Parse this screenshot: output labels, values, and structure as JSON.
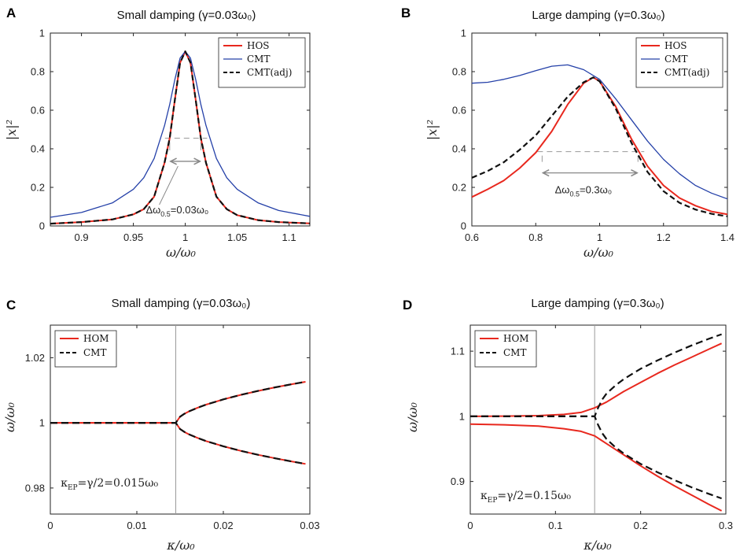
{
  "chart_data": [
    {
      "id": "A",
      "type": "line",
      "letter": "A",
      "title": "Small damping (γ=0.03ω₀)",
      "xlabel": "ω/ω₀",
      "ylabel": "|x|²",
      "xlim": [
        0.87,
        1.12
      ],
      "ylim": [
        0,
        1
      ],
      "xticks": [
        0.9,
        0.95,
        1,
        1.05,
        1.1
      ],
      "xtick_labels": [
        "0.9",
        "0.95",
        "1",
        "1.05",
        "1.1"
      ],
      "yticks": [
        0,
        0.2,
        0.4,
        0.6,
        0.8,
        1
      ],
      "ytick_labels": [
        "0",
        "0.2",
        "0.4",
        "0.6",
        "0.8",
        "1"
      ],
      "legend_position": "top-right",
      "series": [
        {
          "name": "HOS",
          "color": "#e8281e",
          "style": "solid",
          "x": [
            0.87,
            0.9,
            0.93,
            0.95,
            0.96,
            0.97,
            0.98,
            0.985,
            0.99,
            0.995,
            1.0,
            1.005,
            1.01,
            1.015,
            1.02,
            1.03,
            1.04,
            1.05,
            1.07,
            1.09,
            1.12
          ],
          "y": [
            0.012,
            0.02,
            0.034,
            0.06,
            0.087,
            0.152,
            0.327,
            0.455,
            0.655,
            0.846,
            0.905,
            0.846,
            0.655,
            0.455,
            0.327,
            0.152,
            0.087,
            0.056,
            0.03,
            0.02,
            0.013
          ]
        },
        {
          "name": "CMT",
          "color": "#2440a8",
          "style": "solid",
          "x": [
            0.87,
            0.9,
            0.93,
            0.95,
            0.96,
            0.97,
            0.98,
            0.985,
            0.99,
            0.995,
            1.0,
            1.005,
            1.01,
            1.015,
            1.02,
            1.03,
            1.04,
            1.05,
            1.07,
            1.09,
            1.12
          ],
          "y": [
            0.045,
            0.07,
            0.12,
            0.19,
            0.25,
            0.35,
            0.52,
            0.63,
            0.76,
            0.87,
            0.905,
            0.87,
            0.76,
            0.63,
            0.52,
            0.35,
            0.25,
            0.19,
            0.12,
            0.08,
            0.05
          ]
        },
        {
          "name": "CMT(adj)",
          "color": "#111111",
          "style": "dashed",
          "x": [
            0.87,
            0.9,
            0.93,
            0.95,
            0.96,
            0.97,
            0.98,
            0.985,
            0.99,
            0.995,
            1.0,
            1.005,
            1.01,
            1.015,
            1.02,
            1.03,
            1.04,
            1.05,
            1.07,
            1.09,
            1.12
          ],
          "y": [
            0.012,
            0.02,
            0.034,
            0.06,
            0.087,
            0.152,
            0.327,
            0.455,
            0.655,
            0.846,
            0.905,
            0.846,
            0.655,
            0.455,
            0.327,
            0.152,
            0.087,
            0.056,
            0.03,
            0.02,
            0.013
          ]
        }
      ],
      "halfmax": {
        "y": 0.455,
        "x_from": 0.985,
        "x_to": 1.015,
        "arrow_y": 0.335
      },
      "annotation": {
        "text": "Δω₀.₅=0.03ω₀",
        "main": "Δω",
        "sub": "0.5",
        "rest": "=0.03ω₀",
        "x": 0.962,
        "y": 0.065
      }
    },
    {
      "id": "B",
      "type": "line",
      "letter": "B",
      "title": "Large damping (γ=0.3ω₀)",
      "xlabel": "ω/ω₀",
      "ylabel": "|x|²",
      "xlim": [
        0.6,
        1.4
      ],
      "ylim": [
        0,
        1
      ],
      "xticks": [
        0.6,
        0.8,
        1,
        1.2,
        1.4
      ],
      "xtick_labels": [
        "0.6",
        "0.8",
        "1",
        "1.2",
        "1.4"
      ],
      "yticks": [
        0,
        0.2,
        0.4,
        0.6,
        0.8,
        1
      ],
      "ytick_labels": [
        "0",
        "0.2",
        "0.4",
        "0.6",
        "0.8",
        "1"
      ],
      "legend_position": "top-right",
      "series": [
        {
          "name": "HOS",
          "color": "#e8281e",
          "style": "solid",
          "x": [
            0.6,
            0.65,
            0.7,
            0.75,
            0.8,
            0.85,
            0.9,
            0.95,
            0.98,
            1.0,
            1.05,
            1.1,
            1.15,
            1.2,
            1.25,
            1.3,
            1.35,
            1.4
          ],
          "y": [
            0.15,
            0.19,
            0.235,
            0.3,
            0.38,
            0.49,
            0.63,
            0.74,
            0.77,
            0.75,
            0.62,
            0.45,
            0.31,
            0.21,
            0.145,
            0.105,
            0.075,
            0.06
          ]
        },
        {
          "name": "CMT",
          "color": "#2440a8",
          "style": "solid",
          "x": [
            0.6,
            0.65,
            0.7,
            0.75,
            0.8,
            0.85,
            0.9,
            0.95,
            1.0,
            1.05,
            1.1,
            1.15,
            1.2,
            1.25,
            1.3,
            1.35,
            1.4
          ],
          "y": [
            0.74,
            0.745,
            0.76,
            0.78,
            0.805,
            0.828,
            0.835,
            0.81,
            0.76,
            0.66,
            0.55,
            0.44,
            0.345,
            0.27,
            0.21,
            0.17,
            0.14
          ]
        },
        {
          "name": "CMT(adj)",
          "color": "#111111",
          "style": "dashed",
          "x": [
            0.6,
            0.65,
            0.7,
            0.75,
            0.8,
            0.85,
            0.9,
            0.95,
            0.98,
            1.0,
            1.05,
            1.1,
            1.15,
            1.2,
            1.25,
            1.3,
            1.35,
            1.4
          ],
          "y": [
            0.25,
            0.285,
            0.33,
            0.395,
            0.47,
            0.57,
            0.67,
            0.745,
            0.77,
            0.75,
            0.61,
            0.43,
            0.28,
            0.18,
            0.12,
            0.085,
            0.063,
            0.05
          ]
        }
      ],
      "halfmax": {
        "y": 0.385,
        "x_from": 0.82,
        "x_to": 1.12,
        "arrow_y": 0.275
      },
      "annotation": {
        "text": "Δω₀.₅=0.3ω₀",
        "main": "Δω",
        "sub": "0.5",
        "rest": "=0.3ω₀",
        "x": 0.86,
        "y": 0.17
      }
    },
    {
      "id": "C",
      "type": "line",
      "letter": "C",
      "title": "Small damping (γ=0.03ω₀)",
      "xlabel": "κ/ω₀",
      "ylabel": "ω/ω₀",
      "xlim": [
        0,
        0.03
      ],
      "ylim": [
        0.972,
        1.03
      ],
      "xticks": [
        0,
        0.01,
        0.02,
        0.03
      ],
      "xtick_labels": [
        "0",
        "0.01",
        "0.02",
        "0.03"
      ],
      "yticks": [
        0.98,
        1,
        1.02
      ],
      "ytick_labels": [
        "0.98",
        "1",
        "1.02"
      ],
      "legend_position": "top-left",
      "ep_line": 0.0145,
      "series": [
        {
          "name": "HOM",
          "color": "#e8281e",
          "style": "solid",
          "x": [
            0,
            0.005,
            0.01,
            0.0145,
            0.015,
            0.0155,
            0.016,
            0.017,
            0.018,
            0.019,
            0.02,
            0.022,
            0.024,
            0.026,
            0.028,
            0.0295
          ],
          "y_upper": [
            1,
            1,
            1,
            1,
            1.0019,
            1.0028,
            1.0035,
            1.0046,
            1.0056,
            1.0064,
            1.0072,
            1.0086,
            1.0098,
            1.0109,
            1.0119,
            1.0126
          ],
          "y_lower": [
            1,
            1,
            1,
            1,
            0.9981,
            0.9972,
            0.9965,
            0.9954,
            0.9944,
            0.9936,
            0.9928,
            0.9914,
            0.9902,
            0.9891,
            0.9881,
            0.9874
          ]
        },
        {
          "name": "CMT",
          "color": "#111111",
          "style": "dashed",
          "x": [
            0,
            0.005,
            0.01,
            0.0145,
            0.015,
            0.0155,
            0.016,
            0.017,
            0.018,
            0.019,
            0.02,
            0.022,
            0.024,
            0.026,
            0.028,
            0.0295
          ],
          "y_upper": [
            1,
            1,
            1,
            1,
            1.0019,
            1.0028,
            1.0035,
            1.0046,
            1.0056,
            1.0064,
            1.0072,
            1.0086,
            1.0098,
            1.0109,
            1.0119,
            1.0126
          ],
          "y_lower": [
            1,
            1,
            1,
            1,
            0.9981,
            0.9972,
            0.9965,
            0.9954,
            0.9944,
            0.9936,
            0.9928,
            0.9914,
            0.9902,
            0.9891,
            0.9881,
            0.9874
          ]
        }
      ],
      "annotation": {
        "text": "κEP=γ/2=0.015ω₀",
        "main": "κ",
        "sub": "EP",
        "rest": "=γ/2=0.015ω₀",
        "x": 0.0012,
        "y": 0.9805
      }
    },
    {
      "id": "D",
      "type": "line",
      "letter": "D",
      "title": "Large damping (γ=0.3ω₀)",
      "xlabel": "κ/ω₀",
      "ylabel": "ω/ω₀",
      "xlim": [
        0,
        0.3
      ],
      "ylim": [
        0.85,
        1.14
      ],
      "xticks": [
        0,
        0.1,
        0.2,
        0.3
      ],
      "xtick_labels": [
        "0",
        "0.1",
        "0.2",
        "0.3"
      ],
      "yticks": [
        0.9,
        1,
        1.1
      ],
      "ytick_labels": [
        "0.9",
        "1",
        "1.1"
      ],
      "legend_position": "top-left",
      "ep_line": 0.146,
      "series": [
        {
          "name": "HOM",
          "color": "#e8281e",
          "style": "solid",
          "x": [
            0,
            0.04,
            0.08,
            0.11,
            0.13,
            0.146,
            0.16,
            0.18,
            0.2,
            0.22,
            0.24,
            0.26,
            0.28,
            0.295
          ],
          "y_upper": [
            1,
            1.0003,
            1.001,
            1.003,
            1.006,
            1.013,
            1.022,
            1.038,
            1.052,
            1.066,
            1.079,
            1.091,
            1.103,
            1.112
          ],
          "y_lower": [
            0.988,
            0.987,
            0.985,
            0.981,
            0.977,
            0.97,
            0.958,
            0.941,
            0.924,
            0.908,
            0.893,
            0.879,
            0.865,
            0.855
          ]
        },
        {
          "name": "CMT",
          "color": "#111111",
          "style": "dashed",
          "x": [
            0,
            0.04,
            0.08,
            0.11,
            0.13,
            0.146,
            0.15,
            0.155,
            0.16,
            0.17,
            0.18,
            0.2,
            0.22,
            0.24,
            0.26,
            0.28,
            0.295
          ],
          "y_upper": [
            1,
            1,
            1,
            1,
            1,
            1,
            1.013,
            1.026,
            1.035,
            1.047,
            1.057,
            1.073,
            1.086,
            1.098,
            1.109,
            1.119,
            1.126
          ],
          "y_lower": [
            1,
            1,
            1,
            1,
            1,
            1,
            0.987,
            0.974,
            0.965,
            0.953,
            0.943,
            0.927,
            0.914,
            0.902,
            0.891,
            0.881,
            0.874
          ]
        }
      ],
      "annotation": {
        "text": "κEP=γ/2=0.15ω₀",
        "main": "κ",
        "sub": "EP",
        "rest": "=γ/2=0.15ω₀",
        "x": 0.012,
        "y": 0.873
      }
    }
  ]
}
